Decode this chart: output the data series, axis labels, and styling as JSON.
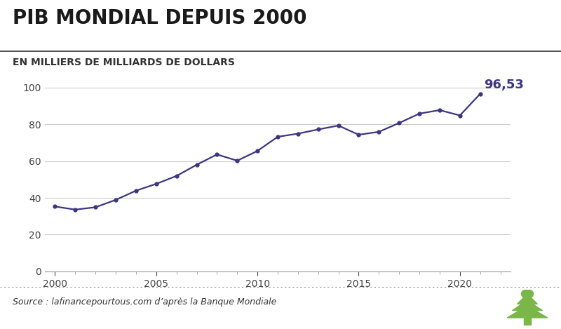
{
  "title": "PIB MONDIAL DEPUIS 2000",
  "subtitle": "EN MILLIERS DE MILLIARDS DE DOLLARS",
  "source": "Source : lafinancepourtous.com d’après la Banque Mondiale",
  "years": [
    2000,
    2001,
    2002,
    2003,
    2004,
    2005,
    2006,
    2007,
    2008,
    2009,
    2010,
    2011,
    2012,
    2013,
    2014,
    2015,
    2016,
    2017,
    2018,
    2019,
    2020,
    2021
  ],
  "values": [
    35.3,
    33.6,
    34.9,
    38.9,
    43.9,
    47.6,
    51.9,
    58.0,
    63.6,
    60.2,
    65.5,
    73.2,
    74.9,
    77.2,
    79.3,
    74.3,
    75.9,
    80.7,
    85.8,
    87.7,
    84.8,
    96.53
  ],
  "line_color": "#3d3580",
  "marker_color": "#3d3580",
  "last_label": "96,53",
  "last_label_color": "#3d3580",
  "ylim": [
    0,
    110
  ],
  "yticks": [
    0,
    20,
    40,
    60,
    80,
    100
  ],
  "xlim": [
    1999.5,
    2022.5
  ],
  "xticks": [
    2000,
    2005,
    2010,
    2015,
    2020
  ],
  "grid_color": "#cccccc",
  "bg_color": "#ffffff",
  "plot_bg_color": "#ffffff",
  "title_fontsize": 20,
  "subtitle_fontsize": 10,
  "tick_fontsize": 10,
  "source_fontsize": 9,
  "annotation_fontsize": 13,
  "tree_color": "#7ab648"
}
